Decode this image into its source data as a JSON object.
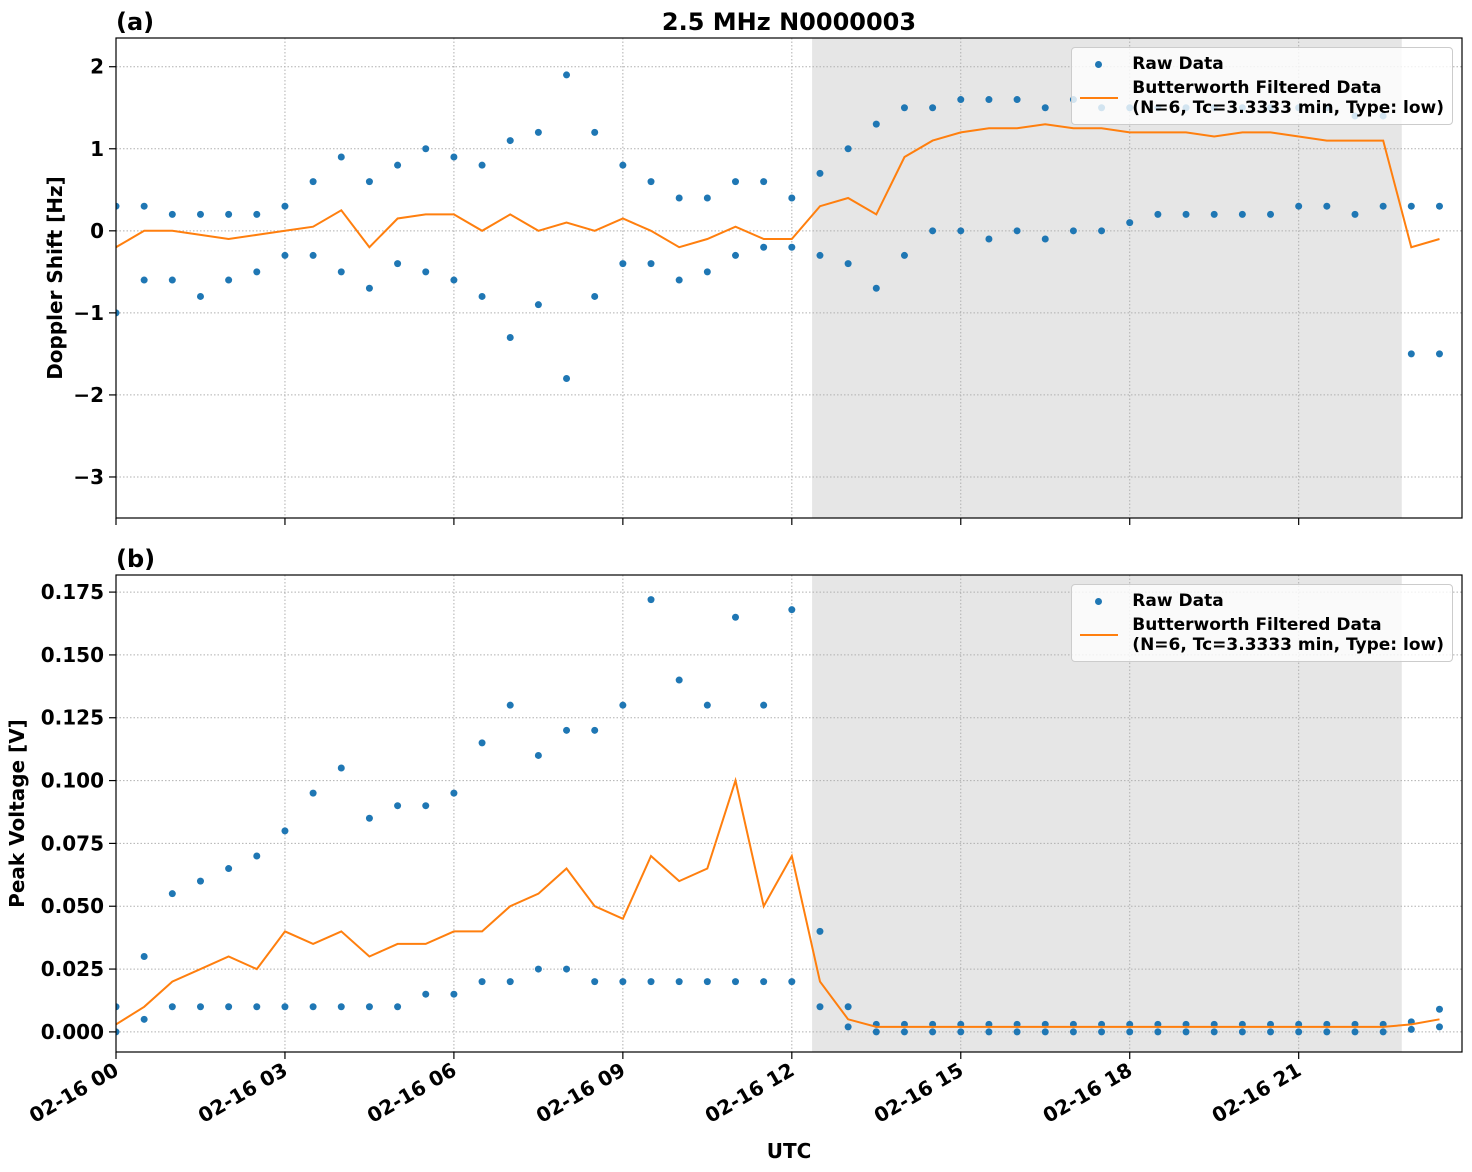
{
  "chart_data": [
    {
      "type": "line",
      "title": "2.5 MHz N0000003",
      "panel_label": "(a)",
      "y_label": "Doppler Shift [Hz]",
      "xlim": [
        0,
        23.9
      ],
      "ylim": [
        -3.5,
        2.35
      ],
      "xticks": [
        0,
        3,
        6,
        9,
        12,
        15,
        18,
        21
      ],
      "yticks": [
        {
          "value": -3,
          "label": "−3"
        },
        {
          "value": -2,
          "label": "−2"
        },
        {
          "value": -1,
          "label": "−1"
        },
        0,
        1,
        2
      ],
      "grid": true,
      "legend": "upper right",
      "shaded_span": [
        12.36,
        22.83
      ],
      "shade_color": "#e6e6e6",
      "x": [
        0,
        0.5,
        1,
        1.5,
        2,
        2.5,
        3,
        3.5,
        4,
        4.5,
        5,
        5.5,
        6,
        6.5,
        7,
        7.5,
        8,
        8.5,
        9,
        9.5,
        10,
        10.5,
        11,
        11.5,
        12,
        12.5,
        13,
        13.5,
        14,
        14.5,
        15,
        15.5,
        16,
        16.5,
        17,
        17.5,
        18,
        18.5,
        19,
        19.5,
        20,
        20.5,
        21,
        21.5,
        22,
        22.5,
        23,
        23.5
      ],
      "series": [
        {
          "name": "Raw Data",
          "type": "scatter",
          "color": "#1f77b4",
          "x": [
            0,
            0,
            0.5,
            0.5,
            1,
            1,
            1.5,
            1.5,
            2,
            2,
            2.5,
            2.5,
            3,
            3,
            3.5,
            3.5,
            4,
            4,
            4.5,
            4.5,
            5,
            5,
            5.5,
            5.5,
            6,
            6,
            6.5,
            6.5,
            7,
            7,
            7.5,
            7.5,
            8,
            8,
            8.5,
            8.5,
            9,
            9,
            9.5,
            9.5,
            10,
            10,
            10.5,
            10.5,
            11,
            11,
            11.5,
            11.5,
            12,
            12,
            12.5,
            12.5,
            13,
            13,
            13.5,
            13.5,
            14,
            14,
            14.5,
            14.5,
            15,
            15,
            15.5,
            15.5,
            16,
            16,
            16.5,
            16.5,
            17,
            17,
            17.5,
            17.5,
            18,
            18,
            18.5,
            18.5,
            19,
            19,
            19.5,
            19.5,
            20,
            20,
            20.5,
            20.5,
            21,
            21,
            21.5,
            21.5,
            22,
            22,
            22.5,
            22.5,
            23,
            23,
            23.5,
            23.5
          ],
          "values": [
            0.3,
            -1.0,
            0.3,
            -0.6,
            0.2,
            -0.6,
            0.2,
            -0.8,
            0.2,
            -0.6,
            0.2,
            -0.5,
            0.3,
            -0.3,
            0.6,
            -0.3,
            0.9,
            -0.5,
            0.6,
            -0.7,
            0.8,
            -0.4,
            1.0,
            -0.5,
            0.9,
            -0.6,
            0.8,
            -0.8,
            1.1,
            -1.3,
            1.2,
            -0.9,
            1.9,
            -1.8,
            1.2,
            -0.8,
            0.8,
            -0.4,
            0.6,
            -0.4,
            0.4,
            -0.6,
            0.4,
            -0.5,
            0.6,
            -0.3,
            0.6,
            -0.2,
            0.4,
            -0.2,
            0.7,
            -0.3,
            1.0,
            -0.4,
            1.3,
            -0.7,
            1.5,
            -0.3,
            1.5,
            0.0,
            1.6,
            0.0,
            1.6,
            -0.1,
            1.6,
            0.0,
            1.5,
            -0.1,
            1.6,
            0.0,
            1.5,
            0.0,
            1.5,
            0.1,
            1.5,
            0.2,
            1.5,
            0.2,
            1.5,
            0.2,
            1.5,
            0.2,
            1.5,
            0.2,
            1.5,
            0.3,
            1.5,
            0.3,
            1.4,
            0.2,
            1.4,
            0.3,
            0.3,
            -1.5,
            0.3,
            -1.5
          ]
        },
        {
          "name": "Butterworth Filtered Data\n(N=6, Tc=3.3333 min, Type: low)",
          "type": "line",
          "color": "#ff7f0e",
          "values": [
            -0.2,
            0,
            0,
            -0.05,
            -0.1,
            -0.05,
            0,
            0.05,
            0.25,
            -0.2,
            0.15,
            0.2,
            0.2,
            0,
            0.2,
            0,
            0.1,
            0,
            0.15,
            0,
            -0.2,
            -0.1,
            0.05,
            -0.1,
            -0.1,
            0.3,
            0.4,
            0.2,
            0.9,
            1.1,
            1.2,
            1.25,
            1.25,
            1.3,
            1.25,
            1.25,
            1.2,
            1.2,
            1.2,
            1.15,
            1.2,
            1.2,
            1.15,
            1.1,
            1.1,
            1.1,
            -0.2,
            -0.1
          ]
        }
      ]
    },
    {
      "type": "line",
      "panel_label": "(b)",
      "y_label": "Peak Voltage [V]",
      "x_label": "UTC",
      "xlim": [
        0,
        23.9
      ],
      "ylim": [
        -0.008,
        0.1818
      ],
      "xticks": [
        {
          "value": 0,
          "label": "02-16 00"
        },
        {
          "value": 3,
          "label": "02-16 03"
        },
        {
          "value": 6,
          "label": "02-16 06"
        },
        {
          "value": 9,
          "label": "02-16 09"
        },
        {
          "value": 12,
          "label": "02-16 12"
        },
        {
          "value": 15,
          "label": "02-16 15"
        },
        {
          "value": 18,
          "label": "02-16 18"
        },
        {
          "value": 21,
          "label": "02-16 21"
        }
      ],
      "yticks": [
        {
          "value": 0,
          "label": "0.000"
        },
        {
          "value": 0.025,
          "label": "0.025"
        },
        {
          "value": 0.05,
          "label": "0.050"
        },
        {
          "value": 0.075,
          "label": "0.075"
        },
        {
          "value": 0.1,
          "label": "0.100"
        },
        {
          "value": 0.125,
          "label": "0.125"
        },
        {
          "value": 0.15,
          "label": "0.150"
        },
        {
          "value": 0.175,
          "label": "0.175"
        }
      ],
      "grid": true,
      "legend": "upper right",
      "shaded_span": [
        12.36,
        22.83
      ],
      "shade_color": "#e6e6e6",
      "x": [
        0,
        0.5,
        1,
        1.5,
        2,
        2.5,
        3,
        3.5,
        4,
        4.5,
        5,
        5.5,
        6,
        6.5,
        7,
        7.5,
        8,
        8.5,
        9,
        9.5,
        10,
        10.5,
        11,
        11.5,
        12,
        12.5,
        13,
        13.5,
        14,
        14.5,
        15,
        15.5,
        16,
        16.5,
        17,
        17.5,
        18,
        18.5,
        19,
        19.5,
        20,
        20.5,
        21,
        21.5,
        22,
        22.5,
        23,
        23.5
      ],
      "series": [
        {
          "name": "Raw Data",
          "type": "scatter",
          "color": "#1f77b4",
          "x": [
            0,
            0,
            0.5,
            0.5,
            1,
            1,
            1.5,
            1.5,
            2,
            2,
            2.5,
            2.5,
            3,
            3,
            3.5,
            3.5,
            4,
            4,
            4.5,
            4.5,
            5,
            5,
            5.5,
            5.5,
            6,
            6,
            6.5,
            6.5,
            7,
            7,
            7.5,
            7.5,
            8,
            8,
            8.5,
            8.5,
            9,
            9,
            9.5,
            9.5,
            10,
            10,
            10.5,
            10.5,
            11,
            11,
            11.5,
            11.5,
            12,
            12,
            12.5,
            12.5,
            13,
            13,
            13.5,
            13.5,
            14,
            14,
            14.5,
            14.5,
            15,
            15,
            15.5,
            15.5,
            16,
            16,
            16.5,
            16.5,
            17,
            17,
            17.5,
            17.5,
            18,
            18,
            18.5,
            18.5,
            19,
            19,
            19.5,
            19.5,
            20,
            20,
            20.5,
            20.5,
            21,
            21,
            21.5,
            21.5,
            22,
            22,
            22.5,
            22.5,
            23,
            23,
            23.5,
            23.5
          ],
          "values": [
            0.01,
            0,
            0.03,
            0.005,
            0.055,
            0.01,
            0.06,
            0.01,
            0.065,
            0.01,
            0.07,
            0.01,
            0.08,
            0.01,
            0.095,
            0.01,
            0.105,
            0.01,
            0.085,
            0.01,
            0.09,
            0.01,
            0.09,
            0.015,
            0.095,
            0.015,
            0.115,
            0.02,
            0.13,
            0.02,
            0.11,
            0.025,
            0.12,
            0.025,
            0.12,
            0.02,
            0.13,
            0.02,
            0.172,
            0.02,
            0.14,
            0.02,
            0.13,
            0.02,
            0.165,
            0.02,
            0.13,
            0.02,
            0.168,
            0.02,
            0.04,
            0.01,
            0.01,
            0.002,
            0.003,
            0,
            0.003,
            0,
            0.003,
            0,
            0.003,
            0,
            0.003,
            0,
            0.003,
            0,
            0.003,
            0,
            0.003,
            0,
            0.003,
            0,
            0.003,
            0,
            0.003,
            0,
            0.003,
            0,
            0.003,
            0,
            0.003,
            0,
            0.003,
            0,
            0.003,
            0,
            0.003,
            0,
            0.003,
            0,
            0.003,
            0,
            0.004,
            0.001,
            0.009,
            0.002
          ]
        },
        {
          "name": "Butterworth Filtered Data\n(N=6, Tc=3.3333 min, Type: low)",
          "type": "line",
          "color": "#ff7f0e",
          "values": [
            0.003,
            0.01,
            0.02,
            0.025,
            0.03,
            0.025,
            0.04,
            0.035,
            0.04,
            0.03,
            0.035,
            0.035,
            0.04,
            0.04,
            0.05,
            0.055,
            0.065,
            0.05,
            0.045,
            0.07,
            0.06,
            0.065,
            0.1,
            0.05,
            0.07,
            0.02,
            0.005,
            0.002,
            0.002,
            0.002,
            0.002,
            0.002,
            0.002,
            0.002,
            0.002,
            0.002,
            0.002,
            0.002,
            0.002,
            0.002,
            0.002,
            0.002,
            0.002,
            0.002,
            0.002,
            0.002,
            0.003,
            0.005
          ]
        }
      ]
    }
  ]
}
